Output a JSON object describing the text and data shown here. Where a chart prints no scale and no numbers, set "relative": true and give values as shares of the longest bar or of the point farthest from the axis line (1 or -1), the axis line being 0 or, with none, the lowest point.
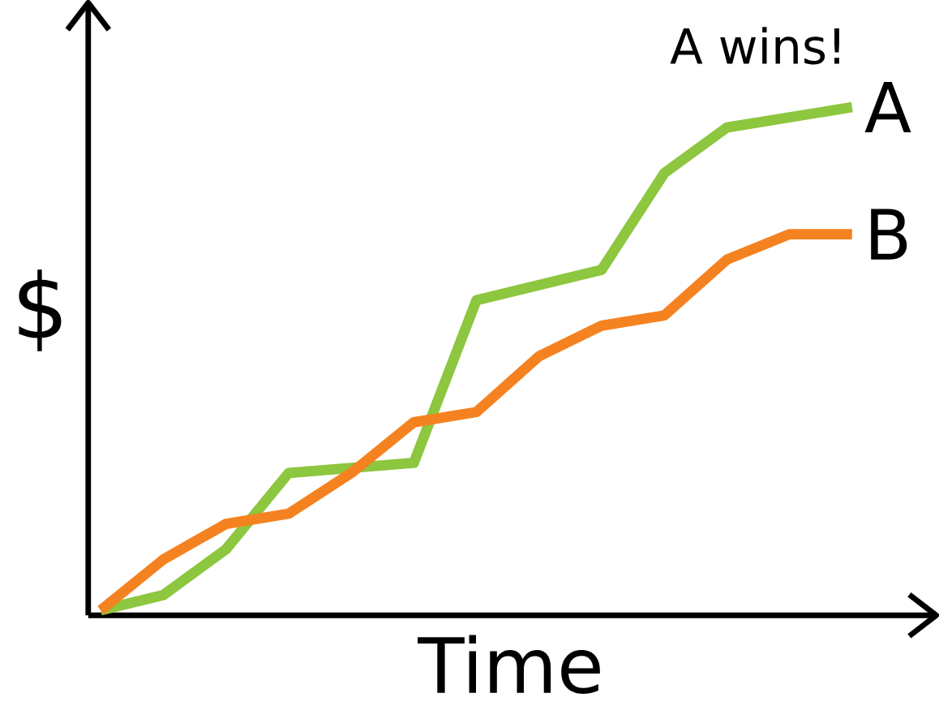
{
  "chart_data": {
    "type": "line",
    "relative": true,
    "xlabel": "Time",
    "ylabel": "$",
    "annotations": [
      "A wins!"
    ],
    "categories": [
      null,
      null,
      null,
      null,
      null,
      null,
      null,
      null,
      null,
      null,
      null,
      null,
      null
    ],
    "series": [
      {
        "name": "A",
        "color": "#8dc63f",
        "values": [
          0.01,
          0.04,
          0.13,
          0.28,
          0.29,
          0.3,
          0.62,
          0.65,
          0.68,
          0.87,
          0.96,
          0.98,
          1.0
        ]
      },
      {
        "name": "B",
        "color": "#f58220",
        "values": [
          0.01,
          0.11,
          0.18,
          0.2,
          0.28,
          0.38,
          0.4,
          0.51,
          0.57,
          0.59,
          0.7,
          0.75,
          0.75
        ]
      }
    ]
  }
}
